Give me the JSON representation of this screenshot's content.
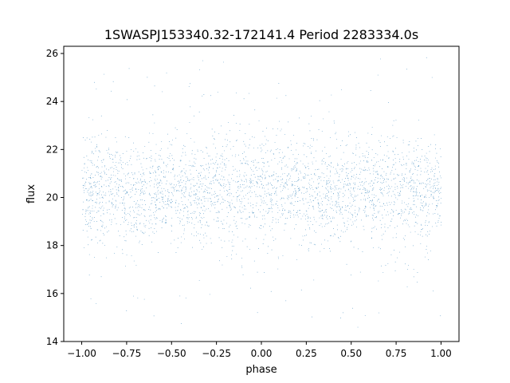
{
  "chart_data": {
    "type": "scatter",
    "title": "1SWASPJ153340.32-172141.4 Period 2283334.0s",
    "xlabel": "phase",
    "ylabel": "flux",
    "xlim": [
      -1.1,
      1.1
    ],
    "ylim": [
      14.0,
      26.3
    ],
    "xticks": [
      -1.0,
      -0.75,
      -0.5,
      -0.25,
      0.0,
      0.25,
      0.5,
      0.75,
      1.0
    ],
    "xtick_labels": [
      "−1.00",
      "−0.75",
      "−0.50",
      "−0.25",
      "0.00",
      "0.25",
      "0.50",
      "0.75",
      "1.00"
    ],
    "yticks": [
      14,
      16,
      18,
      20,
      22,
      24,
      26
    ],
    "ytick_labels": [
      "14",
      "16",
      "18",
      "20",
      "22",
      "24",
      "26"
    ],
    "grid": false,
    "legend": "none",
    "marker_color": "#1f77b4",
    "series": [
      {
        "x_range": [
          -1.0,
          1.0
        ],
        "center_flux": 20.3,
        "core_band": [
          18.5,
          22.3
        ],
        "outlier_range": [
          14.5,
          25.9
        ],
        "point_count": 22000
      }
    ]
  }
}
